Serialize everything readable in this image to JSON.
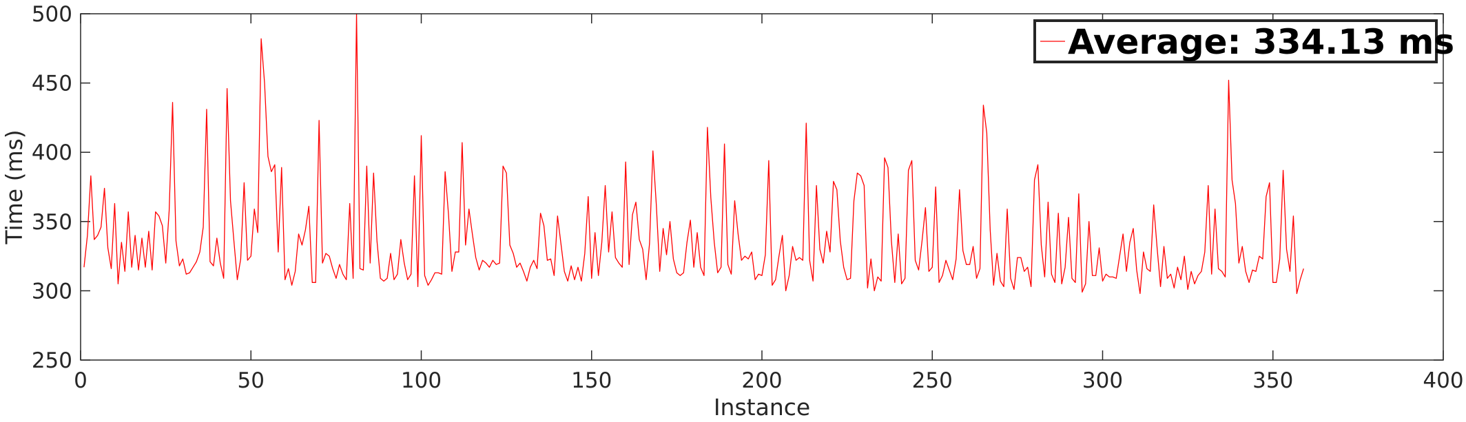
{
  "chart_data": {
    "type": "line",
    "title": "",
    "xlabel": "Instance",
    "ylabel": "Time (ms)",
    "xlim": [
      0,
      400
    ],
    "ylim": [
      250,
      500
    ],
    "xticks": [
      0,
      50,
      100,
      150,
      200,
      250,
      300,
      350,
      400
    ],
    "yticks": [
      250,
      300,
      350,
      400,
      450,
      500
    ],
    "grid": false,
    "legend": {
      "position": "top-right",
      "label": "Average: 334.13 ms"
    },
    "series": [
      {
        "name": "Average: 334.13 ms",
        "color": "#ff0000",
        "x_start": 1,
        "values": [
          317,
          340,
          383,
          337,
          340,
          346,
          374,
          331,
          316,
          363,
          305,
          335,
          314,
          357,
          317,
          340,
          315,
          338,
          317,
          343,
          315,
          357,
          354,
          347,
          320,
          358,
          436,
          336,
          318,
          323,
          312,
          313,
          317,
          321,
          328,
          346,
          431,
          321,
          318,
          338,
          320,
          309,
          446,
          365,
          336,
          308,
          323,
          378,
          322,
          325,
          359,
          342,
          482,
          450,
          397,
          386,
          391,
          328,
          389,
          308,
          316,
          304,
          314,
          341,
          333,
          344,
          361,
          306,
          306,
          423,
          320,
          327,
          325,
          316,
          309,
          319,
          312,
          308,
          363,
          309,
          500,
          316,
          315,
          390,
          320,
          385,
          336,
          309,
          307,
          309,
          327,
          308,
          312,
          337,
          320,
          308,
          312,
          383,
          303,
          412,
          311,
          304,
          308,
          313,
          313,
          312,
          386,
          355,
          314,
          328,
          328,
          407,
          333,
          359,
          341,
          324,
          315,
          322,
          320,
          317,
          322,
          319,
          320,
          390,
          385,
          333,
          327,
          317,
          320,
          314,
          307,
          317,
          322,
          316,
          356,
          347,
          322,
          323,
          311,
          354,
          334,
          314,
          307,
          318,
          308,
          317,
          307,
          327,
          368,
          309,
          342,
          311,
          335,
          376,
          328,
          357,
          324,
          320,
          317,
          393,
          319,
          355,
          364,
          337,
          330,
          308,
          334,
          401,
          362,
          314,
          345,
          326,
          350,
          323,
          313,
          311,
          313,
          335,
          351,
          317,
          342,
          317,
          311,
          418,
          367,
          335,
          313,
          317,
          406,
          319,
          312,
          365,
          341,
          322,
          325,
          323,
          328,
          308,
          312,
          311,
          326,
          394,
          304,
          308,
          325,
          340,
          300,
          311,
          332,
          322,
          324,
          322,
          421,
          322,
          307,
          376,
          330,
          320,
          343,
          328,
          379,
          373,
          336,
          317,
          308,
          309,
          365,
          385,
          383,
          376,
          302,
          323,
          300,
          310,
          307,
          396,
          389,
          336,
          306,
          341,
          305,
          309,
          387,
          394,
          322,
          315,
          336,
          360,
          314,
          317,
          375,
          306,
          311,
          322,
          315,
          308,
          323,
          373,
          329,
          319,
          319,
          332,
          309,
          316,
          434,
          414,
          344,
          304,
          327,
          307,
          303,
          359,
          309,
          301,
          324,
          324,
          314,
          317,
          303,
          380,
          391,
          333,
          310,
          364,
          312,
          306,
          356,
          305,
          317,
          353,
          309,
          306,
          370,
          299,
          305,
          350,
          311,
          311,
          331,
          307,
          312,
          310,
          310,
          309,
          325,
          341,
          314,
          335,
          345,
          315,
          298,
          328,
          316,
          314,
          362,
          331,
          303,
          332,
          309,
          312,
          302,
          317,
          308,
          325,
          301,
          314,
          305,
          311,
          314,
          328,
          376,
          312,
          359,
          316,
          314,
          310,
          452,
          380,
          363,
          320,
          332,
          314,
          306,
          315,
          314,
          325,
          323,
          368,
          378,
          306,
          306,
          323,
          387,
          330,
          314,
          354,
          298,
          308,
          316
        ]
      }
    ]
  }
}
